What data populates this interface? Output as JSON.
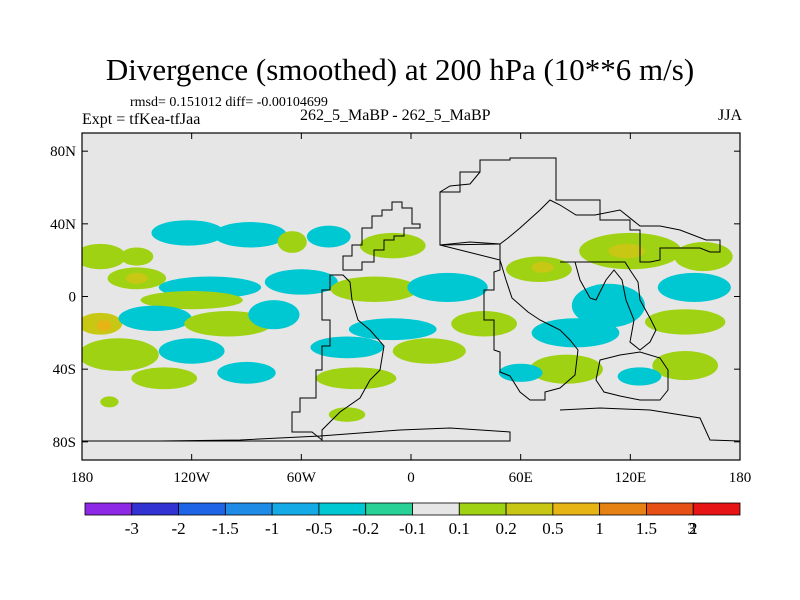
{
  "header": {
    "title": "Divergence (smoothed) at 200 hPa (10**6 m/s)",
    "stats": "rmsd= 0.151012 diff= -0.00104699",
    "expt": "Expt = tfKea-tfJaa",
    "comparison": "262_5_MaBP - 262_5_MaBP",
    "season": "JJA"
  },
  "chart_data": {
    "type": "heatmap",
    "projection": "cylindrical-equidistant",
    "x_ticks": [
      "180",
      "120W",
      "60W",
      "0",
      "60E",
      "120E",
      "180"
    ],
    "x_values": [
      -180,
      -120,
      -60,
      0,
      60,
      120,
      180
    ],
    "y_ticks": [
      "80N",
      "40N",
      "0",
      "40S",
      "80S"
    ],
    "y_values": [
      80,
      40,
      0,
      -40,
      -80
    ],
    "xlim": [
      -180,
      180
    ],
    "ylim": [
      -90,
      90
    ],
    "background_level": "-0.1 to 0.1",
    "colorbar": {
      "labels": [
        "-3",
        "-2",
        "-1.5",
        "-1",
        "-0.5",
        "-0.2",
        "-0.1",
        "0.1",
        "0.2",
        "0.5",
        "1",
        "1.5",
        "2",
        "3"
      ],
      "colors": [
        "#8c28e6",
        "#3232d2",
        "#1e64e6",
        "#1e8ce6",
        "#14aae6",
        "#00c8d2",
        "#28d296",
        "#e6e6e6",
        "#a0d214",
        "#c8c814",
        "#e6b414",
        "#e68214",
        "#e65014",
        "#e61414"
      ]
    },
    "regions": [
      {
        "level": "0.2",
        "lon": -170,
        "lat": 22,
        "rx": 14,
        "ry": 7
      },
      {
        "level": "0.2",
        "lon": -150,
        "lat": 22,
        "rx": 9,
        "ry": 5
      },
      {
        "level": "-0.2",
        "lon": -122,
        "lat": 35,
        "rx": 20,
        "ry": 7
      },
      {
        "level": "-0.2",
        "lon": -88,
        "lat": 34,
        "rx": 20,
        "ry": 7
      },
      {
        "level": "-0.2",
        "lon": -45,
        "lat": 33,
        "rx": 12,
        "ry": 6
      },
      {
        "level": "0.2",
        "lon": -65,
        "lat": 30,
        "rx": 8,
        "ry": 6
      },
      {
        "level": "0.2",
        "lon": -10,
        "lat": 28,
        "rx": 18,
        "ry": 7
      },
      {
        "level": "0.2",
        "lon": -150,
        "lat": 10,
        "rx": 16,
        "ry": 6
      },
      {
        "level": "0.5",
        "lon": -150,
        "lat": 10,
        "rx": 6,
        "ry": 3
      },
      {
        "level": "-0.2",
        "lon": -110,
        "lat": 5,
        "rx": 28,
        "ry": 6
      },
      {
        "level": "0.2",
        "lon": -120,
        "lat": -2,
        "rx": 28,
        "ry": 5
      },
      {
        "level": "-0.2",
        "lon": -60,
        "lat": 8,
        "rx": 20,
        "ry": 7
      },
      {
        "level": "0.2",
        "lon": -20,
        "lat": 4,
        "rx": 24,
        "ry": 7
      },
      {
        "level": "-0.2",
        "lon": 20,
        "lat": 5,
        "rx": 22,
        "ry": 8
      },
      {
        "level": "0.2",
        "lon": 70,
        "lat": 15,
        "rx": 18,
        "ry": 7
      },
      {
        "level": "0.5",
        "lon": 72,
        "lat": 16,
        "rx": 6,
        "ry": 3
      },
      {
        "level": "0.2",
        "lon": 120,
        "lat": 25,
        "rx": 28,
        "ry": 10
      },
      {
        "level": "0.5",
        "lon": 118,
        "lat": 25,
        "rx": 10,
        "ry": 4
      },
      {
        "level": "0.2",
        "lon": 160,
        "lat": 22,
        "rx": 16,
        "ry": 8
      },
      {
        "level": "-0.2",
        "lon": 155,
        "lat": 5,
        "rx": 20,
        "ry": 8
      },
      {
        "level": "-0.2",
        "lon": 108,
        "lat": -5,
        "rx": 20,
        "ry": 12
      },
      {
        "level": "0.2",
        "lon": 150,
        "lat": -14,
        "rx": 22,
        "ry": 7
      },
      {
        "level": "0.5",
        "lon": -170,
        "lat": -15,
        "rx": 12,
        "ry": 6
      },
      {
        "level": "1",
        "lon": -168,
        "lat": -16,
        "rx": 4,
        "ry": 3
      },
      {
        "level": "-0.2",
        "lon": -140,
        "lat": -12,
        "rx": 20,
        "ry": 7
      },
      {
        "level": "0.2",
        "lon": -100,
        "lat": -15,
        "rx": 24,
        "ry": 7
      },
      {
        "level": "-0.2",
        "lon": -75,
        "lat": -10,
        "rx": 14,
        "ry": 8
      },
      {
        "level": "-0.2",
        "lon": -10,
        "lat": -18,
        "rx": 24,
        "ry": 6
      },
      {
        "level": "0.2",
        "lon": 40,
        "lat": -15,
        "rx": 18,
        "ry": 7
      },
      {
        "level": "-0.2",
        "lon": 90,
        "lat": -20,
        "rx": 24,
        "ry": 8
      },
      {
        "level": "0.2",
        "lon": -160,
        "lat": -32,
        "rx": 22,
        "ry": 9
      },
      {
        "level": "-0.2",
        "lon": -120,
        "lat": -30,
        "rx": 18,
        "ry": 7
      },
      {
        "level": "-0.2",
        "lon": -35,
        "lat": -28,
        "rx": 20,
        "ry": 6
      },
      {
        "level": "0.2",
        "lon": 10,
        "lat": -30,
        "rx": 20,
        "ry": 7
      },
      {
        "level": "0.2",
        "lon": 85,
        "lat": -40,
        "rx": 20,
        "ry": 8
      },
      {
        "level": "0.2",
        "lon": 150,
        "lat": -38,
        "rx": 18,
        "ry": 8
      },
      {
        "level": "0.2",
        "lon": -135,
        "lat": -45,
        "rx": 18,
        "ry": 6
      },
      {
        "level": "-0.2",
        "lon": -90,
        "lat": -42,
        "rx": 16,
        "ry": 6
      },
      {
        "level": "-0.2",
        "lon": 60,
        "lat": -42,
        "rx": 12,
        "ry": 5
      },
      {
        "level": "0.2",
        "lon": -30,
        "lat": -45,
        "rx": 22,
        "ry": 6
      },
      {
        "level": "-0.2",
        "lon": 125,
        "lat": -44,
        "rx": 12,
        "ry": 5
      },
      {
        "level": "0.2",
        "lon": -35,
        "lat": -65,
        "rx": 10,
        "ry": 4
      },
      {
        "level": "0.2",
        "lon": -165,
        "lat": -58,
        "rx": 5,
        "ry": 3
      }
    ]
  }
}
